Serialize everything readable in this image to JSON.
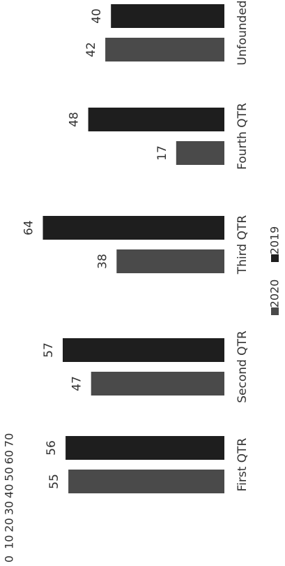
{
  "chart_data": {
    "type": "bar",
    "orientation": "horizontal (page rotated 90° counter-clockwise)",
    "categories": [
      "First QTR",
      "Second QTR",
      "Third QTR",
      "Fourth QTR",
      "Unfounded"
    ],
    "series": [
      {
        "name": "2020",
        "values": [
          55,
          47,
          38,
          17,
          42
        ],
        "color": "#4a4a4a"
      },
      {
        "name": "2019",
        "values": [
          56,
          57,
          64,
          48,
          40
        ],
        "color": "#1e1e1e"
      }
    ],
    "axis": {
      "min": 0,
      "max": 70,
      "step": 10,
      "ticks": [
        "0",
        "10",
        "20",
        "30",
        "40",
        "50",
        "60",
        "70"
      ]
    },
    "data_labels": true,
    "legend_position": "bottom",
    "gridlines": false
  }
}
